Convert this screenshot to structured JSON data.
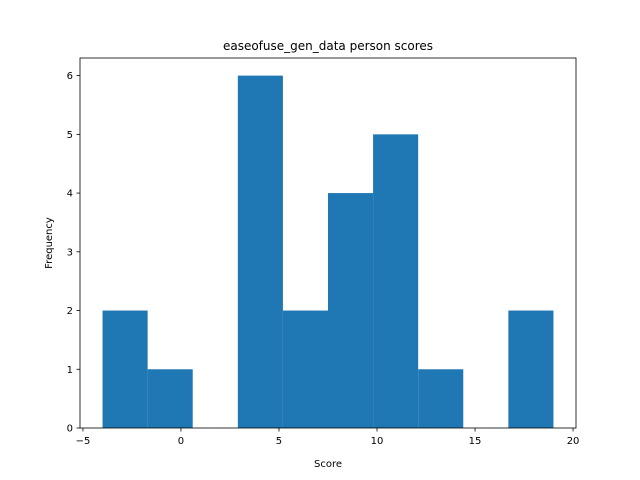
{
  "chart_data": {
    "type": "bar",
    "title": "easeofuse_gen_data person scores",
    "xlabel": "Score",
    "ylabel": "Frequency",
    "bins": [
      {
        "x0": -4.0,
        "x1": -1.7,
        "count": 2
      },
      {
        "x0": -1.7,
        "x1": 0.6,
        "count": 1
      },
      {
        "x0": 0.6,
        "x1": 2.9,
        "count": 0
      },
      {
        "x0": 2.9,
        "x1": 5.2,
        "count": 6
      },
      {
        "x0": 5.2,
        "x1": 7.5,
        "count": 2
      },
      {
        "x0": 7.5,
        "x1": 9.8,
        "count": 4
      },
      {
        "x0": 9.8,
        "x1": 12.1,
        "count": 5
      },
      {
        "x0": 12.1,
        "x1": 14.4,
        "count": 1
      },
      {
        "x0": 14.4,
        "x1": 16.7,
        "count": 0
      },
      {
        "x0": 16.7,
        "x1": 19.0,
        "count": 2
      }
    ],
    "xlim": [
      -5.15,
      20.15
    ],
    "ylim": [
      0,
      6.3
    ],
    "xticks": [
      -5,
      0,
      5,
      10,
      15,
      20
    ],
    "yticks": [
      0,
      1,
      2,
      3,
      4,
      5,
      6
    ],
    "bar_color": "#1f77b4",
    "grid": false
  }
}
